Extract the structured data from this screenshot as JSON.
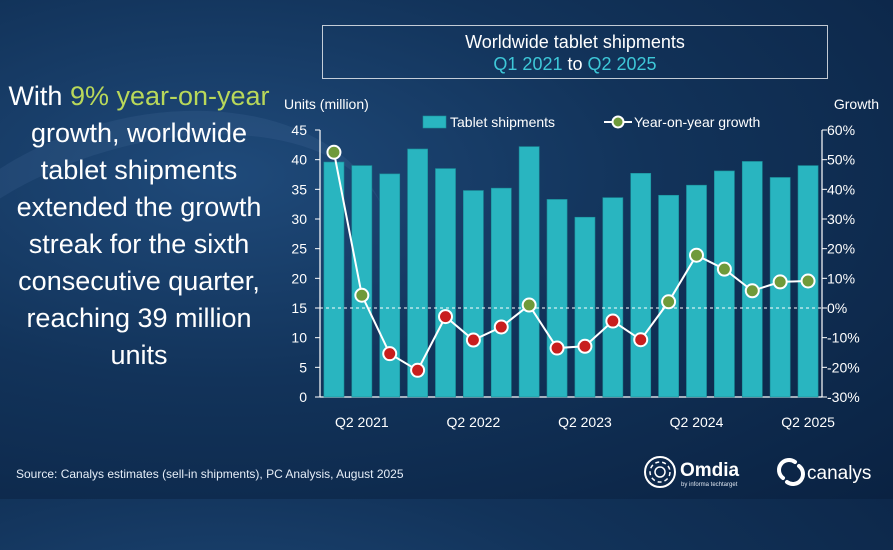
{
  "headline": {
    "pre": "With ",
    "highlight": "9% year-on-year",
    "post": " growth, worldwide tablet shipments extended the growth streak for the sixth consecutive quarter, reaching 39 million units"
  },
  "title": {
    "line1": "Worldwide tablet shipments",
    "from": "Q1 2021",
    "mid": " to ",
    "to": "Q2 2025"
  },
  "source": "Source: Canalys estimates (sell-in shipments), PC Analysis, August 2025",
  "logos": {
    "omdia": "Omdia",
    "omdia_sub": "by informa techtarget",
    "canalys": "canalys"
  },
  "colors": {
    "bar": "#29b5c0",
    "bar_edge": "#1b8f99",
    "line": "#ffffff",
    "marker_pos": "#6f9a3a",
    "marker_neg": "#c81e1e",
    "headline_accent": "#b9d85a",
    "title_accent": "#3ec8d8"
  },
  "chart_data": {
    "type": "bar",
    "left_axis_label": "Units (million)",
    "right_axis_label": "Growth",
    "ylim": [
      0,
      45
    ],
    "y_ticks": [
      0,
      5,
      10,
      15,
      20,
      25,
      30,
      35,
      40,
      45
    ],
    "y2lim": [
      -30,
      60
    ],
    "y2_ticks": [
      "-30%",
      "-20%",
      "-10%",
      "0%",
      "10%",
      "20%",
      "30%",
      "40%",
      "50%",
      "60%"
    ],
    "categories": [
      "Q1 2021",
      "Q2 2021",
      "Q3 2021",
      "Q4 2021",
      "Q1 2022",
      "Q2 2022",
      "Q3 2022",
      "Q4 2022",
      "Q1 2023",
      "Q2 2023",
      "Q3 2023",
      "Q4 2023",
      "Q1 2024",
      "Q2 2024",
      "Q3 2024",
      "Q4 2024",
      "Q1 2025",
      "Q2 2025"
    ],
    "x_tick_labels": [
      "Q2 2021",
      "Q2 2022",
      "Q2 2023",
      "Q2 2024",
      "Q2 2025"
    ],
    "legend": [
      "Tablet shipments",
      "Year-on-year growth"
    ],
    "series": [
      {
        "name": "Tablet shipments",
        "type": "bar",
        "values": [
          39.6,
          39.0,
          37.6,
          41.8,
          38.5,
          34.8,
          35.2,
          42.2,
          33.3,
          30.3,
          33.6,
          37.7,
          34.0,
          35.7,
          38.1,
          39.7,
          37.0,
          39.0
        ]
      },
      {
        "name": "Year-on-year growth",
        "type": "line",
        "axis": "right",
        "unit": "%",
        "values": [
          52.5,
          4.3,
          -15.4,
          -21.0,
          -2.9,
          -10.8,
          -6.4,
          1.0,
          -13.5,
          -12.9,
          -4.4,
          -10.7,
          2.1,
          17.8,
          13.1,
          5.8,
          8.8,
          9.1
        ]
      }
    ],
    "dashed_zero_line": true,
    "grid": false,
    "legend_position": "top"
  }
}
